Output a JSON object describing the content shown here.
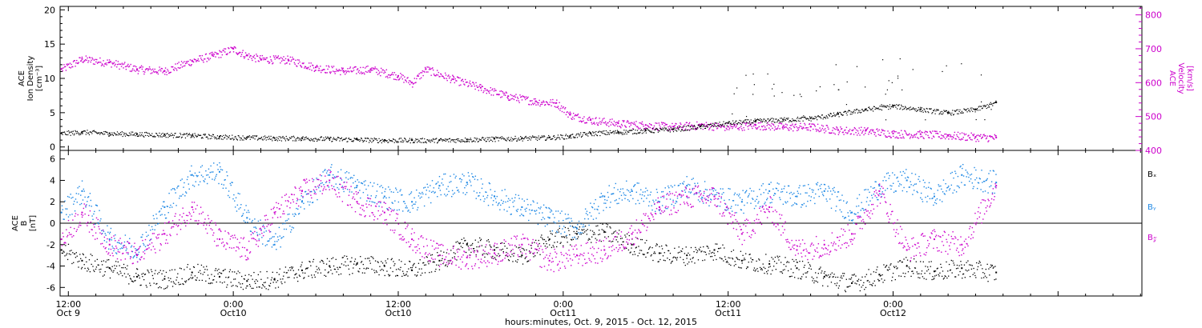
{
  "colors": {
    "density": "#000000",
    "velocity": "#cc00cc",
    "bx": "#000000",
    "by": "#1e88e5",
    "bz": "#cc00cc",
    "axis": "#000000"
  },
  "xaxis": {
    "title": "hours:minutes, Oct. 9, 2015 - Oct. 12, 2015",
    "ticks": [
      {
        "time": "12:00",
        "day": "Oct 9",
        "hours": 12
      },
      {
        "time": "0:00",
        "day": "Oct10",
        "hours": 24
      },
      {
        "time": "12:00",
        "day": "Oct10",
        "hours": 36
      },
      {
        "time": "0:00",
        "day": "Oct11",
        "hours": 48
      },
      {
        "time": "12:00",
        "day": "Oct11",
        "hours": 60
      },
      {
        "time": "0:00",
        "day": "Oct12",
        "hours": 72
      }
    ]
  },
  "chart_data": [
    {
      "type": "scatter",
      "panel": "top",
      "x_units": "hours since Oct 9 00:00",
      "xlim": [
        11.4,
        90.1
      ],
      "left_axis": {
        "label_lines": [
          "ACE",
          "Ion Density",
          "[cm⁻³]"
        ],
        "ylim": [
          -0.5,
          20.5
        ],
        "ticks": [
          0,
          5,
          10,
          15,
          20
        ]
      },
      "right_axis": {
        "label_lines": [
          "ACE",
          "Velocity",
          "[km/s]"
        ],
        "ylim": [
          400,
          825
        ],
        "ticks": [
          400,
          500,
          600,
          700,
          800
        ]
      },
      "series": [
        {
          "key": "density",
          "axis": "left",
          "x": [
            11.5,
            13,
            15,
            17,
            19,
            21,
            23,
            25,
            27,
            29,
            31,
            33,
            35,
            37,
            39,
            41,
            43,
            45,
            47,
            48.5,
            50,
            52,
            54,
            56,
            58,
            60,
            62,
            64,
            66,
            68,
            70,
            72,
            74,
            76,
            78,
            79.5
          ],
          "y": [
            2.0,
            2.2,
            2.0,
            1.9,
            1.8,
            1.7,
            1.5,
            1.4,
            1.3,
            1.3,
            1.2,
            1.1,
            1.0,
            1.0,
            1.0,
            1.1,
            1.2,
            1.3,
            1.4,
            1.6,
            2.0,
            2.2,
            2.4,
            2.6,
            3.0,
            3.5,
            3.8,
            4.0,
            4.2,
            4.8,
            5.5,
            6.0,
            5.5,
            5.0,
            5.5,
            6.5
          ]
        },
        {
          "key": "velocity",
          "axis": "right",
          "x": [
            11.5,
            13,
            15,
            17,
            19,
            21,
            22.5,
            24,
            25,
            26,
            28,
            30,
            32,
            34,
            36,
            37,
            38,
            40,
            42,
            44,
            46,
            47.5,
            48.5,
            50,
            52,
            54,
            56,
            58,
            60,
            62,
            64,
            66,
            68,
            70,
            72,
            74,
            76,
            78,
            79.5
          ],
          "y": [
            640,
            670,
            660,
            640,
            635,
            665,
            680,
            700,
            680,
            670,
            668,
            645,
            635,
            640,
            620,
            600,
            640,
            610,
            585,
            560,
            545,
            540,
            505,
            490,
            480,
            475,
            470,
            475,
            470,
            475,
            470,
            470,
            460,
            458,
            450,
            448,
            445,
            440,
            438
          ]
        }
      ]
    },
    {
      "type": "scatter",
      "panel": "bottom",
      "x_units": "hours since Oct 9 00:00",
      "xlim": [
        11.4,
        90.1
      ],
      "left_axis": {
        "label_lines": [
          "ACE",
          "B",
          "[nT]"
        ],
        "ylim": [
          -6.8,
          6.8
        ],
        "ticks": [
          -6,
          -4,
          -2,
          0,
          2,
          4,
          6
        ]
      },
      "zero_line": true,
      "legend": [
        "Bₓ",
        "Bᵧ",
        "B𝓏"
      ],
      "series": [
        {
          "key": "bx",
          "label": "Bₓ",
          "x": [
            11.5,
            13,
            15,
            17,
            19,
            21,
            23,
            25,
            27,
            29,
            31,
            33,
            35,
            37,
            39,
            41,
            43,
            45,
            47,
            49,
            51,
            53,
            55,
            57,
            59,
            61,
            63,
            65,
            67,
            69,
            71,
            73,
            75,
            77,
            79.5
          ],
          "y": [
            -2.5,
            -3.5,
            -4.2,
            -5.0,
            -5.2,
            -4.6,
            -5.0,
            -5.4,
            -5.2,
            -4.4,
            -4.0,
            -3.8,
            -4.0,
            -4.4,
            -3.5,
            -2.0,
            -2.5,
            -3.0,
            -1.5,
            -1.0,
            -0.8,
            -2.0,
            -2.8,
            -3.0,
            -2.5,
            -3.5,
            -3.8,
            -4.2,
            -5.0,
            -5.6,
            -4.8,
            -4.0,
            -4.5,
            -4.2,
            -4.6
          ]
        },
        {
          "key": "by",
          "label": "Bᵧ",
          "x": [
            11.5,
            13,
            15,
            17,
            19,
            21,
            23,
            25,
            27,
            29,
            31,
            33,
            35,
            37,
            39,
            41,
            43,
            45,
            47,
            49,
            51,
            53,
            55,
            57,
            59,
            61,
            63,
            65,
            67,
            69,
            71,
            73,
            75,
            77,
            79.5
          ],
          "y": [
            1.0,
            3.0,
            -1.5,
            -2.5,
            1.5,
            4.5,
            4.8,
            0.5,
            -2.0,
            2.0,
            4.5,
            3.5,
            2.5,
            2.0,
            3.5,
            3.8,
            2.5,
            1.5,
            0.5,
            -0.5,
            2.5,
            3.0,
            2.0,
            3.5,
            2.5,
            2.0,
            3.0,
            2.5,
            3.0,
            1.0,
            3.5,
            4.0,
            2.5,
            4.5,
            3.8
          ]
        },
        {
          "key": "bz",
          "label": "B𝓏",
          "x": [
            11.5,
            13,
            15,
            17,
            19,
            21,
            23,
            25,
            27,
            29,
            31,
            33,
            35,
            37,
            39,
            41,
            43,
            45,
            47,
            49,
            51,
            53,
            55,
            57,
            59,
            61,
            63,
            65,
            67,
            69,
            71,
            73,
            75,
            77,
            79.5
          ],
          "y": [
            -1.5,
            1.0,
            -2.0,
            -3.0,
            -1.0,
            1.5,
            -1.5,
            -2.5,
            1.0,
            3.0,
            4.0,
            2.0,
            1.0,
            -1.5,
            -3.0,
            -3.2,
            -2.8,
            -2.0,
            -3.5,
            -3.0,
            -2.5,
            -1.0,
            1.5,
            2.5,
            2.5,
            -1.0,
            1.5,
            -2.5,
            -2.0,
            -1.0,
            3.0,
            -2.5,
            -1.5,
            -2.0,
            3.5
          ]
        }
      ]
    }
  ]
}
